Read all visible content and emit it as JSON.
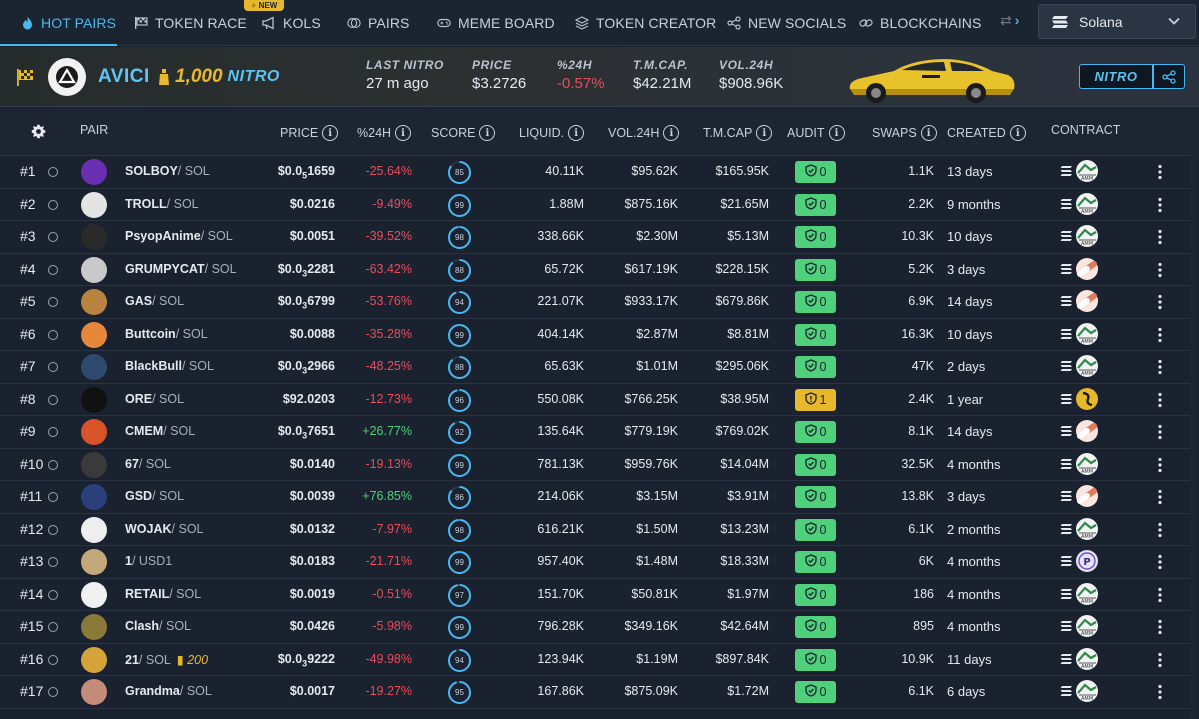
{
  "nav": {
    "tabs": [
      {
        "label": "HOT PAIRS",
        "icon": "flame-icon",
        "active": true
      },
      {
        "label": "TOKEN RACE",
        "icon": "checkered-flag-icon"
      },
      {
        "label": "KOLS",
        "icon": "megaphone-icon"
      },
      {
        "label": "PAIRS",
        "icon": "coins-icon"
      },
      {
        "label": "MEME BOARD",
        "icon": "gamepad-icon"
      },
      {
        "label": "TOKEN CREATOR",
        "icon": "token-creator-icon"
      },
      {
        "label": "NEW SOCIALS",
        "icon": "share-nodes-icon"
      },
      {
        "label": "BLOCKCHAINS",
        "icon": "link-icon"
      }
    ],
    "new_badge": "NEW",
    "chain": "Solana"
  },
  "banner": {
    "name": "AVICI",
    "boost": "1,000",
    "nitro_word": "NITRO",
    "stats": [
      {
        "label": "LAST NITRO",
        "value": "27 m ago"
      },
      {
        "label": "PRICE",
        "value": "$3.2726"
      },
      {
        "label": "%24H",
        "value": "-0.57%",
        "negative": true
      },
      {
        "label": "T.M.CAP.",
        "value": "$42.21M"
      },
      {
        "label": "VOL.24H",
        "value": "$908.96K"
      }
    ],
    "nitro_button": "NITRO"
  },
  "headers": {
    "pair": "PAIR",
    "price": "PRICE",
    "change": "%24H",
    "score": "SCORE",
    "liquidity": "LIQUID.",
    "volume": "VOL.24H",
    "mcap": "T.M.CAP",
    "audit": "AUDIT",
    "swaps": "SWAPS",
    "created": "CREATED",
    "contract": "CONTRACT"
  },
  "rows": [
    {
      "rank": "#1",
      "pair": "SOLBOY",
      "quote": "/ SOL",
      "price_pre": "$0.0",
      "price_sub": "5",
      "price_post": "1659",
      "change": "-25.64%",
      "dir": "neg",
      "score": "85",
      "liq": "40.11K",
      "vol": "$95.62K",
      "mcap": "$165.95K",
      "audit": "0",
      "audit_status": "good",
      "swaps": "1.1K",
      "created": "13 days",
      "avatar_color": "#6a2fb0",
      "contract": "amm"
    },
    {
      "rank": "#2",
      "pair": "TROLL",
      "quote": "/ SOL",
      "price_pre": "$0.0216",
      "price_sub": "",
      "price_post": "",
      "change": "-9.49%",
      "dir": "neg",
      "score": "99",
      "liq": "1.88M",
      "vol": "$875.16K",
      "mcap": "$21.65M",
      "audit": "0",
      "audit_status": "good",
      "swaps": "2.2K",
      "created": "9 months",
      "avatar_color": "#e4e4e4",
      "contract": "amm"
    },
    {
      "rank": "#3",
      "pair": "PsyopAnime",
      "quote": "/ SOL",
      "price_pre": "$0.0051",
      "price_sub": "",
      "price_post": "",
      "change": "-39.52%",
      "dir": "neg",
      "score": "98",
      "liq": "338.66K",
      "vol": "$2.30M",
      "mcap": "$5.13M",
      "audit": "0",
      "audit_status": "good",
      "swaps": "10.3K",
      "created": "10 days",
      "avatar_color": "#2a2a2a",
      "contract": "amm"
    },
    {
      "rank": "#4",
      "pair": "GRUMPYCAT",
      "quote": "/ SOL",
      "price_pre": "$0.0",
      "price_sub": "3",
      "price_post": "2281",
      "change": "-63.42%",
      "dir": "neg",
      "score": "88",
      "liq": "65.72K",
      "vol": "$617.19K",
      "mcap": "$228.15K",
      "audit": "0",
      "audit_status": "good",
      "swaps": "5.2K",
      "created": "3 days",
      "avatar_color": "#c9c9c9",
      "contract": "pump"
    },
    {
      "rank": "#5",
      "pair": "GAS",
      "quote": "/ SOL",
      "price_pre": "$0.0",
      "price_sub": "3",
      "price_post": "6799",
      "change": "-53.76%",
      "dir": "neg",
      "score": "94",
      "liq": "221.07K",
      "vol": "$933.17K",
      "mcap": "$679.86K",
      "audit": "0",
      "audit_status": "good",
      "swaps": "6.9K",
      "created": "14 days",
      "avatar_color": "#b9823e",
      "contract": "pump"
    },
    {
      "rank": "#6",
      "pair": "Buttcoin",
      "quote": "/ SOL",
      "price_pre": "$0.0088",
      "price_sub": "",
      "price_post": "",
      "change": "-35.28%",
      "dir": "neg",
      "score": "99",
      "liq": "404.14K",
      "vol": "$2.87M",
      "mcap": "$8.81M",
      "audit": "0",
      "audit_status": "good",
      "swaps": "16.3K",
      "created": "10 days",
      "avatar_color": "#e7873a",
      "contract": "amm"
    },
    {
      "rank": "#7",
      "pair": "BlackBull",
      "quote": "/ SOL",
      "price_pre": "$0.0",
      "price_sub": "3",
      "price_post": "2966",
      "change": "-48.25%",
      "dir": "neg",
      "score": "88",
      "liq": "65.63K",
      "vol": "$1.01M",
      "mcap": "$295.06K",
      "audit": "0",
      "audit_status": "good",
      "swaps": "47K",
      "created": "2 days",
      "avatar_color": "#2d4a6e",
      "contract": "amm"
    },
    {
      "rank": "#8",
      "pair": "ORE",
      "quote": "/ SOL",
      "price_pre": "$92.0203",
      "price_sub": "",
      "price_post": "",
      "change": "-12.73%",
      "dir": "neg",
      "score": "96",
      "liq": "550.08K",
      "vol": "$766.25K",
      "mcap": "$38.95M",
      "audit": "1",
      "audit_status": "warn",
      "swaps": "2.4K",
      "created": "1 year",
      "avatar_color": "#111111",
      "contract": "ore"
    },
    {
      "rank": "#9",
      "pair": "CMEM",
      "quote": "/ SOL",
      "price_pre": "$0.0",
      "price_sub": "3",
      "price_post": "7651",
      "change": "+26.77%",
      "dir": "pos",
      "score": "92",
      "liq": "135.64K",
      "vol": "$779.19K",
      "mcap": "$769.02K",
      "audit": "0",
      "audit_status": "good",
      "swaps": "8.1K",
      "created": "14 days",
      "avatar_color": "#d9532a",
      "contract": "pump"
    },
    {
      "rank": "#10",
      "pair": "67",
      "quote": "/ SOL",
      "price_pre": "$0.0140",
      "price_sub": "",
      "price_post": "",
      "change": "-19.13%",
      "dir": "neg",
      "score": "99",
      "liq": "781.13K",
      "vol": "$959.76K",
      "mcap": "$14.04M",
      "audit": "0",
      "audit_status": "good",
      "swaps": "32.5K",
      "created": "4 months",
      "avatar_color": "#3a3a3a",
      "contract": "amm"
    },
    {
      "rank": "#11",
      "pair": "GSD",
      "quote": "/ SOL",
      "price_pre": "$0.0039",
      "price_sub": "",
      "price_post": "",
      "change": "+76.85%",
      "dir": "pos",
      "score": "86",
      "liq": "214.06K",
      "vol": "$3.15M",
      "mcap": "$3.91M",
      "audit": "0",
      "audit_status": "good",
      "swaps": "13.8K",
      "created": "3 days",
      "avatar_color": "#2b3f7a",
      "contract": "pump"
    },
    {
      "rank": "#12",
      "pair": "WOJAK",
      "quote": "/ SOL",
      "price_pre": "$0.0132",
      "price_sub": "",
      "price_post": "",
      "change": "-7.97%",
      "dir": "neg",
      "score": "98",
      "liq": "616.21K",
      "vol": "$1.50M",
      "mcap": "$13.23M",
      "audit": "0",
      "audit_status": "good",
      "swaps": "6.1K",
      "created": "2 months",
      "avatar_color": "#eeeeee",
      "contract": "amm"
    },
    {
      "rank": "#13",
      "pair": "1",
      "quote": "/ USD1",
      "price_pre": "$0.0183",
      "price_sub": "",
      "price_post": "",
      "change": "-21.71%",
      "dir": "neg",
      "score": "99",
      "liq": "957.40K",
      "vol": "$1.48M",
      "mcap": "$18.33M",
      "audit": "0",
      "audit_status": "good",
      "swaps": "6K",
      "created": "4 months",
      "avatar_color": "#c4a77a",
      "contract": "usd1"
    },
    {
      "rank": "#14",
      "pair": "RETAIL",
      "quote": "/ SOL",
      "price_pre": "$0.0019",
      "price_sub": "",
      "price_post": "",
      "change": "-0.51%",
      "dir": "neg",
      "score": "97",
      "liq": "151.70K",
      "vol": "$50.81K",
      "mcap": "$1.97M",
      "audit": "0",
      "audit_status": "good",
      "swaps": "186",
      "created": "4 months",
      "avatar_color": "#f0f0f0",
      "contract": "amm"
    },
    {
      "rank": "#15",
      "pair": "Clash",
      "quote": "/ SOL",
      "price_pre": "$0.0426",
      "price_sub": "",
      "price_post": "",
      "change": "-5.98%",
      "dir": "neg",
      "score": "99",
      "liq": "796.28K",
      "vol": "$349.16K",
      "mcap": "$42.64M",
      "audit": "0",
      "audit_status": "good",
      "swaps": "895",
      "created": "4 months",
      "avatar_color": "#8a7a3a",
      "contract": "amm"
    },
    {
      "rank": "#16",
      "pair": "21",
      "quote": "/ SOL",
      "boost": "200",
      "price_pre": "$0.0",
      "price_sub": "3",
      "price_post": "9222",
      "change": "-49.98%",
      "dir": "neg",
      "score": "94",
      "liq": "123.94K",
      "vol": "$1.19M",
      "mcap": "$897.84K",
      "audit": "0",
      "audit_status": "good",
      "swaps": "10.9K",
      "created": "11 days",
      "avatar_color": "#d4a43a",
      "contract": "amm"
    },
    {
      "rank": "#17",
      "pair": "Grandma",
      "quote": "/ SOL",
      "price_pre": "$0.0017",
      "price_sub": "",
      "price_post": "",
      "change": "-19.27%",
      "dir": "neg",
      "score": "95",
      "liq": "167.86K",
      "vol": "$875.09K",
      "mcap": "$1.72M",
      "audit": "0",
      "audit_status": "good",
      "swaps": "6.1K",
      "created": "6 days",
      "avatar_color": "#c48a7a",
      "contract": "amm"
    }
  ],
  "colors": {
    "accent": "#48b8f0",
    "negative": "#e84d5c",
    "positive": "#4fd07a",
    "warning": "#e8b82c",
    "background": "#1a2230"
  }
}
